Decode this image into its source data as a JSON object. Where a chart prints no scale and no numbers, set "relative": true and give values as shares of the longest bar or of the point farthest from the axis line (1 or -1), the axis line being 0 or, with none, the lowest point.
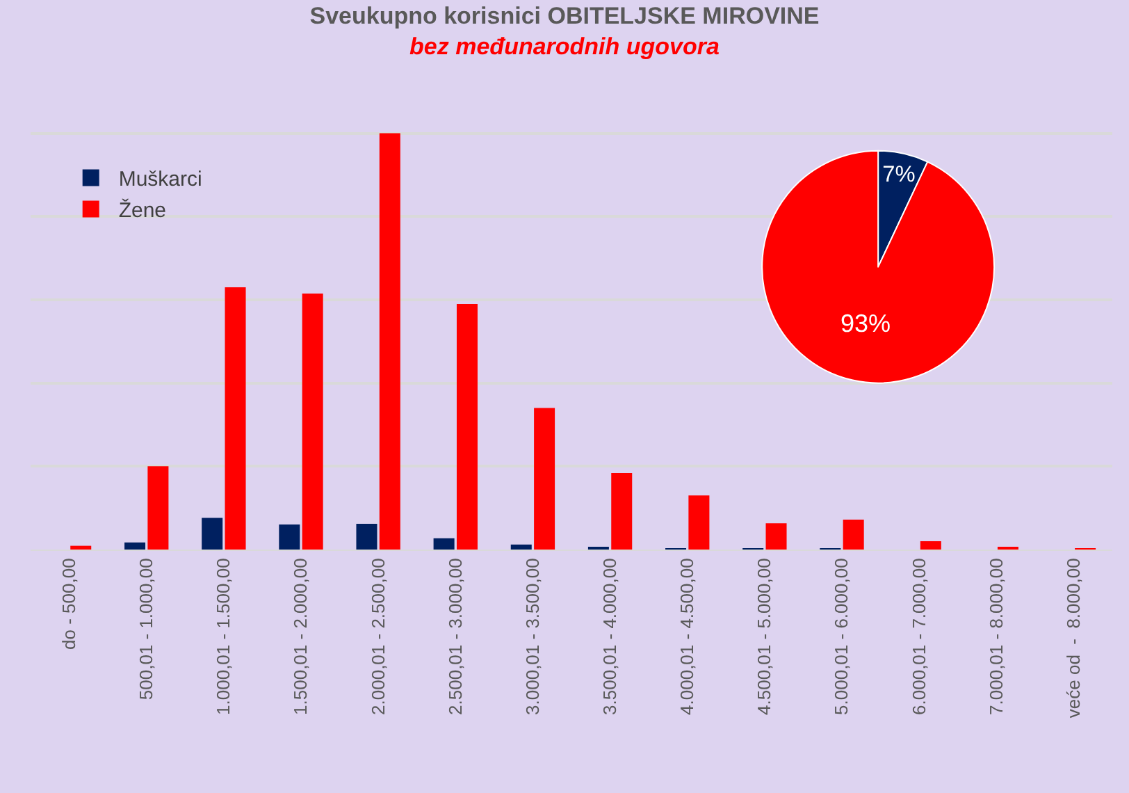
{
  "chart_data": [
    {
      "type": "bar",
      "title": "Sveukupno korisnici OBITELJSKE MIROVINE",
      "subtitle": "bez međunarodnih ugovora",
      "relative": true,
      "grid": "y",
      "legend": "top left",
      "categories": [
        "do - 500,00",
        "500,01 - 1.000,00",
        "1.000,01 - 1.500,00",
        "1.500,01 - 2.000,00",
        "2.000,01 - 2.500,00",
        "2.500,01 - 3.000,00",
        "3.000,01 - 3.500,00",
        "3.500,01 - 4.000,00",
        "4.000,01 - 4.500,00",
        "4.500,01 - 5.000,00",
        "5.000,01 - 6.000,00",
        "6.000,01 - 7.000,00",
        "7.000,01 - 8.000,00",
        "veće od  -  8.000,00"
      ],
      "series": [
        {
          "name": "Muškarci",
          "color": "#002060",
          "values": [
            0,
            0.017,
            0.076,
            0.06,
            0.062,
            0.027,
            0.012,
            0.005,
            0.003,
            0.002,
            0.002,
            0,
            0,
            0
          ]
        },
        {
          "name": "Žene",
          "color": "#ff0000",
          "values": [
            0.009,
            0.2,
            0.63,
            0.615,
            1.0,
            0.59,
            0.34,
            0.184,
            0.13,
            0.063,
            0.072,
            0.02,
            0.004,
            0.003
          ]
        }
      ]
    },
    {
      "type": "pie",
      "categories": [
        null,
        null
      ],
      "values": [
        7,
        93
      ],
      "colors": [
        "#002060",
        "#ff0000"
      ],
      "value_labels": [
        "7%",
        "93%"
      ]
    }
  ]
}
